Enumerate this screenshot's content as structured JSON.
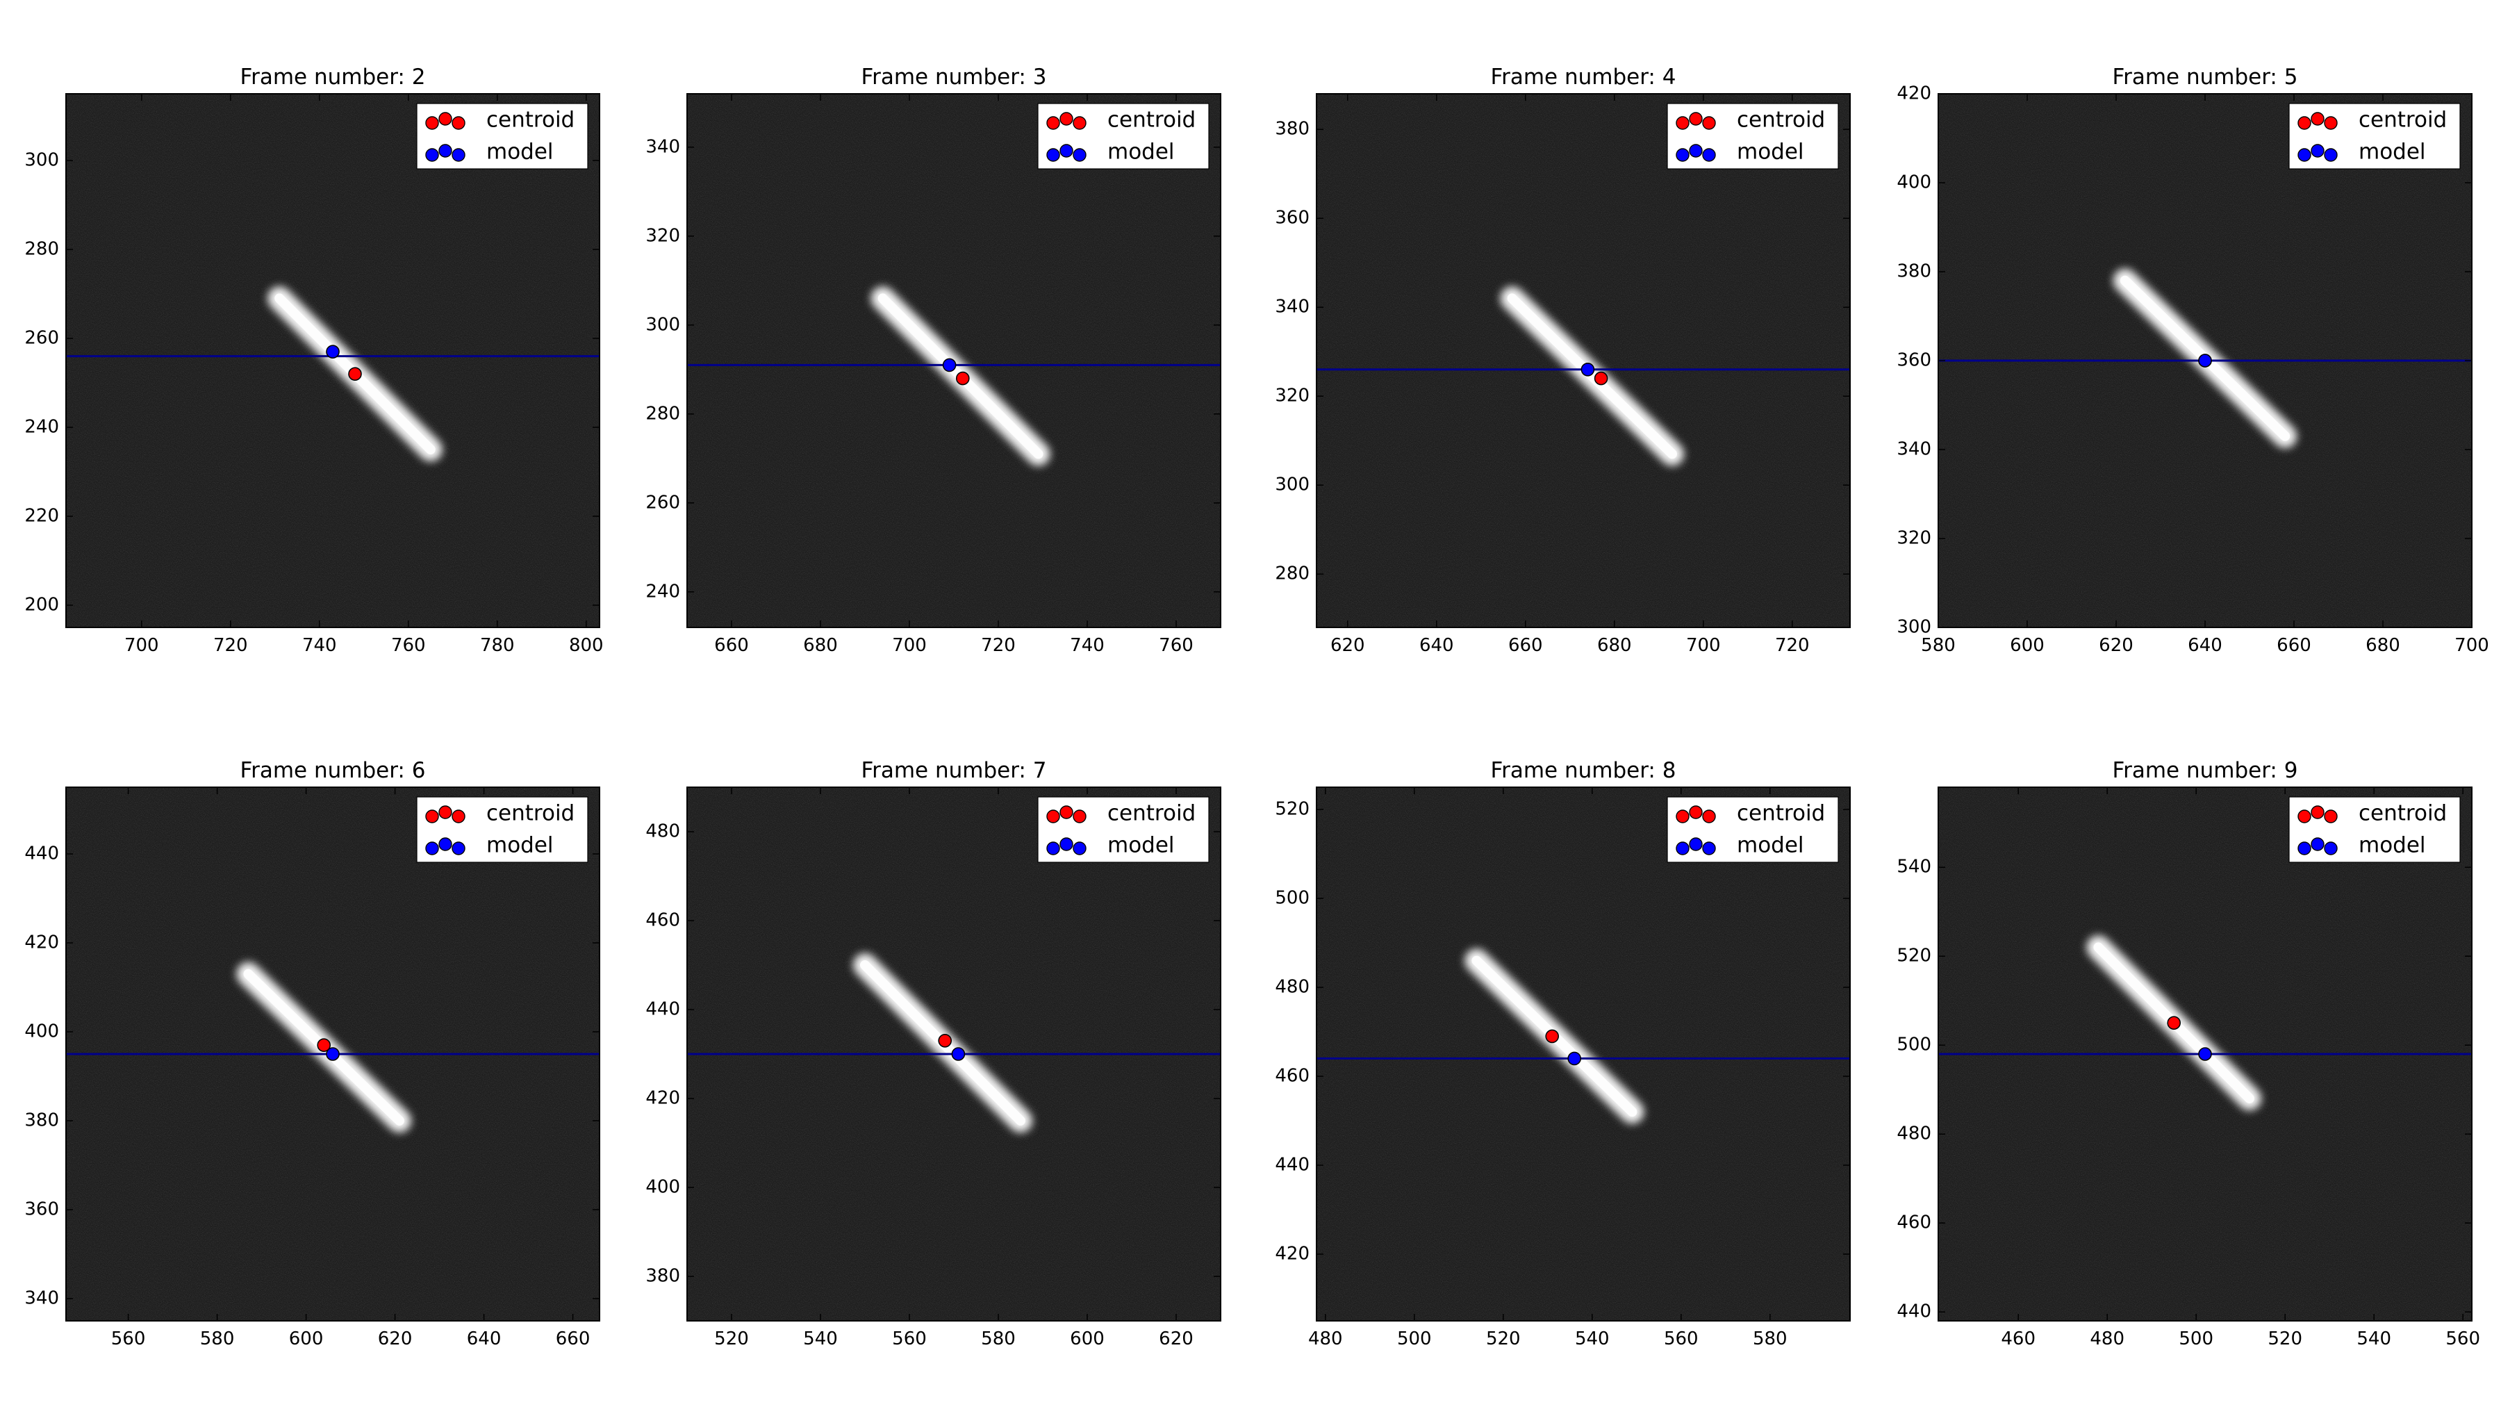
{
  "figure": {
    "colors": {
      "background": "#ffffff",
      "image_bg": "#1c1c1c",
      "streak": "#ffffff",
      "box": "#d9d9d9",
      "row_line": "#00008b",
      "centroid": "#ff0000",
      "model": "#0000ff"
    }
  },
  "chart_data": [
    {
      "type": "scatter",
      "title": "Frame number: 2",
      "xlim": [
        683,
        803
      ],
      "ylim": [
        315,
        195
      ],
      "xticks": [
        700,
        720,
        740,
        760,
        780,
        800
      ],
      "yticks": [
        200,
        220,
        240,
        260,
        280,
        300
      ],
      "box": {
        "x": [
          725,
          773
        ],
        "y": [
          227,
          275
        ]
      },
      "streak": [
        [
          731,
          269
        ],
        [
          765,
          235
        ]
      ],
      "row_line_y": 256,
      "series": [
        {
          "name": "centroid",
          "color": "#ff0000",
          "points": [
            [
              748,
              252
            ]
          ]
        },
        {
          "name": "model",
          "color": "#0000ff",
          "points": [
            [
              743,
              257
            ]
          ]
        }
      ]
    },
    {
      "type": "scatter",
      "title": "Frame number: 3",
      "xlim": [
        650,
        770
      ],
      "ylim": [
        352,
        232
      ],
      "xticks": [
        660,
        680,
        700,
        720,
        740,
        760
      ],
      "yticks": [
        240,
        260,
        280,
        300,
        320,
        340
      ],
      "box": {
        "x": [
          688,
          737
        ],
        "y": [
          264,
          313
        ]
      },
      "streak": [
        [
          694,
          306
        ],
        [
          729,
          271
        ]
      ],
      "row_line_y": 291,
      "series": [
        {
          "name": "centroid",
          "color": "#ff0000",
          "points": [
            [
              712,
              288
            ]
          ]
        },
        {
          "name": "model",
          "color": "#0000ff",
          "points": [
            [
              709,
              291
            ]
          ]
        }
      ]
    },
    {
      "type": "scatter",
      "title": "Frame number: 4",
      "xlim": [
        613,
        733
      ],
      "ylim": [
        388,
        268
      ],
      "xticks": [
        620,
        640,
        660,
        680,
        700,
        720
      ],
      "yticks": [
        280,
        300,
        320,
        340,
        360,
        380
      ],
      "box": {
        "x": [
          652,
          700
        ],
        "y": [
          300,
          348
        ]
      },
      "streak": [
        [
          657,
          342
        ],
        [
          693,
          307
        ]
      ],
      "row_line_y": 326,
      "series": [
        {
          "name": "centroid",
          "color": "#ff0000",
          "points": [
            [
              677,
              324
            ]
          ]
        },
        {
          "name": "model",
          "color": "#0000ff",
          "points": [
            [
              674,
              326
            ]
          ]
        }
      ]
    },
    {
      "type": "scatter",
      "title": "Frame number: 5",
      "xlim": [
        580,
        700
      ],
      "ylim": [
        420,
        300
      ],
      "xticks": [
        580,
        600,
        620,
        640,
        660,
        680,
        700
      ],
      "yticks": [
        300,
        320,
        340,
        360,
        380,
        400,
        420
      ],
      "box": {
        "x": [
          616,
          664
        ],
        "y": [
          336,
          384
        ]
      },
      "streak": [
        [
          622,
          378
        ],
        [
          658,
          343
        ]
      ],
      "row_line_y": 360,
      "series": [
        {
          "name": "centroid",
          "color": "#ff0000",
          "points": [
            [
              640,
              360
            ]
          ]
        },
        {
          "name": "model",
          "color": "#0000ff",
          "points": [
            [
              640,
              360
            ]
          ]
        }
      ]
    },
    {
      "type": "scatter",
      "title": "Frame number: 6",
      "xlim": [
        546,
        666
      ],
      "ylim": [
        455,
        335
      ],
      "xticks": [
        560,
        580,
        600,
        620,
        640,
        660
      ],
      "yticks": [
        340,
        360,
        380,
        400,
        420,
        440
      ],
      "box": {
        "x": [
          580,
          628
        ],
        "y": [
          373,
          421
        ]
      },
      "streak": [
        [
          587,
          413
        ],
        [
          621,
          380
        ]
      ],
      "row_line_y": 395,
      "series": [
        {
          "name": "centroid",
          "color": "#ff0000",
          "points": [
            [
              604,
              397
            ]
          ]
        },
        {
          "name": "model",
          "color": "#0000ff",
          "points": [
            [
              606,
              395
            ]
          ]
        }
      ]
    },
    {
      "type": "scatter",
      "title": "Frame number: 7",
      "xlim": [
        510,
        630
      ],
      "ylim": [
        490,
        370
      ],
      "xticks": [
        520,
        540,
        560,
        580,
        600,
        620
      ],
      "yticks": [
        380,
        400,
        420,
        440,
        460,
        480
      ],
      "box": {
        "x": [
          543,
          592
        ],
        "y": [
          408,
          457
        ]
      },
      "streak": [
        [
          550,
          450
        ],
        [
          585,
          415
        ]
      ],
      "row_line_y": 430,
      "series": [
        {
          "name": "centroid",
          "color": "#ff0000",
          "points": [
            [
              568,
              433
            ]
          ]
        },
        {
          "name": "model",
          "color": "#0000ff",
          "points": [
            [
              571,
              430
            ]
          ]
        }
      ]
    },
    {
      "type": "scatter",
      "title": "Frame number: 8",
      "xlim": [
        478,
        598
      ],
      "ylim": [
        525,
        405
      ],
      "xticks": [
        480,
        500,
        520,
        540,
        560,
        580
      ],
      "yticks": [
        420,
        440,
        460,
        480,
        500,
        520
      ],
      "box": {
        "x": [
          507,
          555
        ],
        "y": [
          445,
          493
        ]
      },
      "streak": [
        [
          514,
          486
        ],
        [
          549,
          452
        ]
      ],
      "row_line_y": 464,
      "series": [
        {
          "name": "centroid",
          "color": "#ff0000",
          "points": [
            [
              531,
              469
            ]
          ]
        },
        {
          "name": "model",
          "color": "#0000ff",
          "points": [
            [
              536,
              464
            ]
          ]
        }
      ]
    },
    {
      "type": "scatter",
      "title": "Frame number: 9",
      "xlim": [
        442,
        562
      ],
      "ylim": [
        558,
        438
      ],
      "xticks": [
        460,
        480,
        500,
        520,
        540,
        560
      ],
      "yticks": [
        440,
        460,
        480,
        500,
        520,
        540
      ],
      "box": {
        "x": [
          471,
          519
        ],
        "y": [
          481,
          529
        ]
      },
      "streak": [
        [
          478,
          522
        ],
        [
          512,
          488
        ]
      ],
      "row_line_y": 498,
      "series": [
        {
          "name": "centroid",
          "color": "#ff0000",
          "points": [
            [
              495,
              505
            ]
          ]
        },
        {
          "name": "model",
          "color": "#0000ff",
          "points": [
            [
              502,
              498
            ]
          ]
        }
      ]
    }
  ]
}
